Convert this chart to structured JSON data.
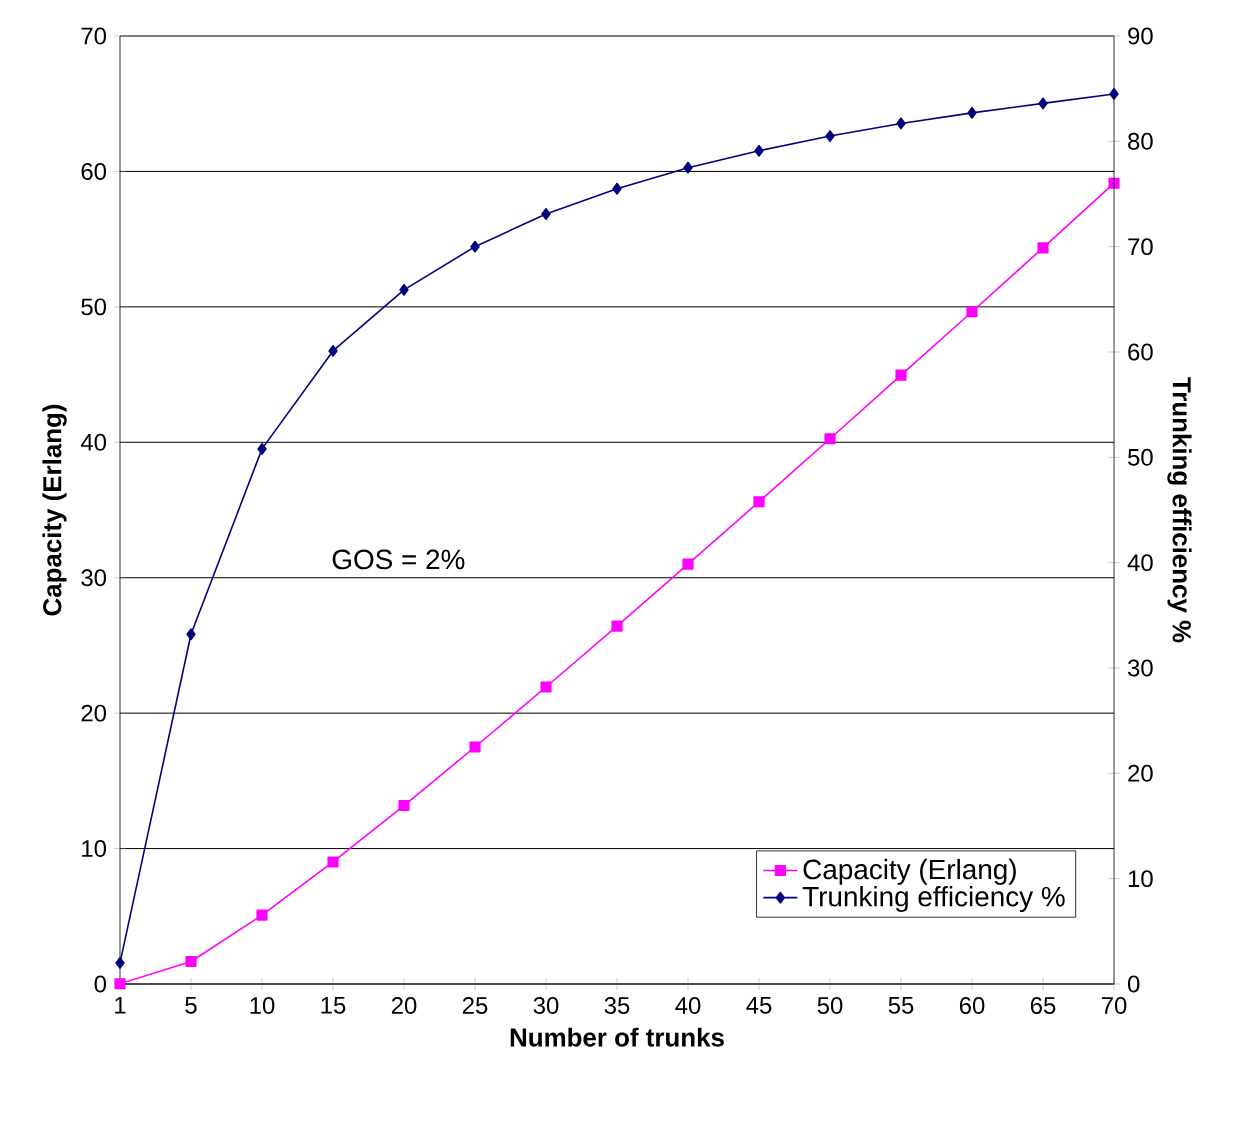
{
  "chart_data": {
    "type": "line",
    "xlabel": "Number of trunks",
    "ylabel": "Capacity (Erlang)",
    "y2label": "Trunking efficiency %",
    "categories": [
      "1",
      "5",
      "10",
      "15",
      "20",
      "25",
      "30",
      "35",
      "40",
      "45",
      "50",
      "55",
      "60",
      "65",
      "70"
    ],
    "series": [
      {
        "name": "Capacity (Erlang)",
        "color": "#ff00ff",
        "marker": "square",
        "values": [
          0.02,
          1.66,
          5.08,
          9.01,
          13.18,
          17.5,
          21.93,
          26.43,
          31.0,
          35.61,
          40.26,
          44.96,
          49.64,
          54.36,
          59.13
        ]
      },
      {
        "name": "Trunking efficiency %",
        "color": "#000080",
        "marker": "diamond",
        "axis": "y2",
        "values": [
          2.0,
          33.2,
          50.8,
          60.1,
          65.9,
          70.0,
          73.1,
          75.5,
          77.5,
          79.1,
          80.5,
          81.7,
          82.7,
          83.6,
          84.5
        ]
      }
    ],
    "ylim": [
      0,
      70
    ],
    "yticks": [
      0,
      10,
      20,
      30,
      40,
      50,
      60,
      70
    ],
    "y2lim": [
      0,
      90
    ],
    "y2ticks": [
      0,
      10,
      20,
      30,
      40,
      50,
      60,
      70,
      80,
      90
    ],
    "annotations": [
      "GOS = 2%"
    ],
    "grid": "y",
    "legend": "bottom right"
  }
}
